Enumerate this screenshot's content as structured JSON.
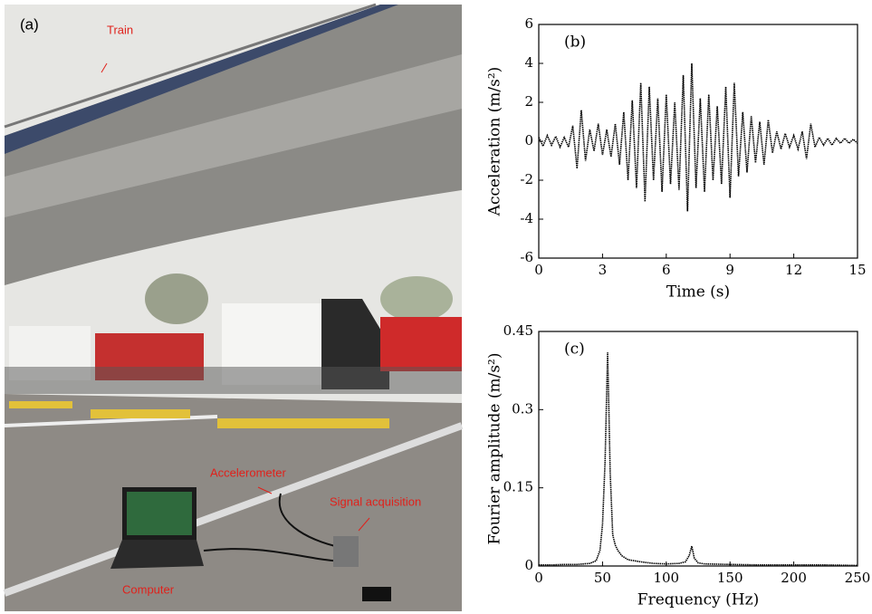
{
  "photo": {
    "panel": "(a)",
    "labels": [
      "Train",
      "Accelerometer",
      "Signal acquisition",
      "Computer"
    ]
  },
  "chart_data": [
    {
      "type": "line",
      "panel": "(b)",
      "xlabel": "Time (s)",
      "ylabel": "Acceleration (m/s²)",
      "color": "#000000",
      "xlim": [
        0,
        15
      ],
      "ylim": [
        -6,
        6
      ],
      "xticks": [
        0,
        3,
        6,
        9,
        12,
        15
      ],
      "yticks": [
        -6,
        -4,
        -2,
        0,
        2,
        4,
        6
      ],
      "x": [
        0,
        0.2,
        0.4,
        0.6,
        0.8,
        1.0,
        1.2,
        1.4,
        1.6,
        1.8,
        2.0,
        2.2,
        2.4,
        2.6,
        2.8,
        3.0,
        3.2,
        3.4,
        3.6,
        3.8,
        4.0,
        4.2,
        4.4,
        4.6,
        4.8,
        5.0,
        5.2,
        5.4,
        5.6,
        5.8,
        6.0,
        6.2,
        6.4,
        6.6,
        6.8,
        7.0,
        7.2,
        7.4,
        7.6,
        7.8,
        8.0,
        8.2,
        8.4,
        8.6,
        8.8,
        9.0,
        9.2,
        9.4,
        9.6,
        9.8,
        10.0,
        10.2,
        10.4,
        10.6,
        10.8,
        11.0,
        11.2,
        11.4,
        11.6,
        11.8,
        12.0,
        12.2,
        12.4,
        12.6,
        12.8,
        13.0,
        13.2,
        13.4,
        13.6,
        13.8,
        14.0,
        14.2,
        14.4,
        14.6,
        14.8,
        15.0
      ],
      "values": [
        0.2,
        -0.25,
        0.3,
        -0.2,
        0.25,
        -0.3,
        0.2,
        -0.3,
        0.8,
        -1.4,
        1.6,
        -1.0,
        0.6,
        -0.5,
        0.9,
        -0.7,
        0.6,
        -0.8,
        0.9,
        -1.2,
        1.5,
        -2.0,
        2.1,
        -2.4,
        3.0,
        -3.1,
        2.8,
        -2.0,
        2.2,
        -2.6,
        2.4,
        -2.2,
        2.0,
        -2.5,
        3.4,
        -3.6,
        4.0,
        -2.4,
        2.2,
        -2.6,
        2.4,
        -2.0,
        1.8,
        -2.2,
        2.8,
        -2.9,
        3.0,
        -1.8,
        1.5,
        -1.6,
        1.3,
        -1.1,
        1.0,
        -1.2,
        1.1,
        -0.6,
        0.5,
        -0.4,
        0.4,
        -0.3,
        0.3,
        -0.4,
        0.5,
        -0.9,
        0.9,
        -0.3,
        0.2,
        -0.2,
        0.15,
        -0.2,
        0.15,
        -0.1,
        0.15,
        -0.1,
        0.1,
        -0.1
      ]
    },
    {
      "type": "line",
      "panel": "(c)",
      "xlabel": "Frequency (Hz)",
      "ylabel": "Fourier amplitude (m/s²)",
      "color": "#000000",
      "xlim": [
        0,
        250
      ],
      "ylim": [
        0,
        0.45
      ],
      "xticks": [
        0,
        50,
        100,
        150,
        200,
        250
      ],
      "yticks": [
        0,
        0.15,
        0.3,
        0.45
      ],
      "x": [
        0,
        10,
        20,
        30,
        40,
        45,
        48,
        50,
        52,
        54,
        55,
        56,
        57,
        58,
        60,
        62,
        65,
        70,
        75,
        80,
        90,
        100,
        110,
        115,
        118,
        120,
        122,
        125,
        130,
        150,
        175,
        200,
        225,
        250
      ],
      "values": [
        0.002,
        0.002,
        0.003,
        0.003,
        0.005,
        0.01,
        0.03,
        0.08,
        0.2,
        0.41,
        0.3,
        0.18,
        0.12,
        0.06,
        0.04,
        0.03,
        0.02,
        0.012,
        0.01,
        0.008,
        0.005,
        0.004,
        0.005,
        0.008,
        0.02,
        0.038,
        0.015,
        0.006,
        0.004,
        0.003,
        0.002,
        0.002,
        0.002,
        0.001
      ]
    }
  ]
}
